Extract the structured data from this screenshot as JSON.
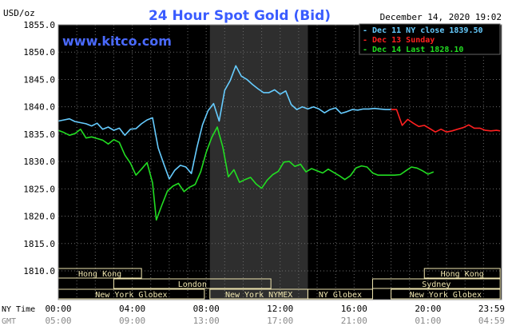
{
  "chart_data": {
    "type": "line",
    "title": "24 Hour Spot Gold (Bid)",
    "watermark": "www.kitco.com",
    "unit_label": "USD/oz",
    "timestamp": "December 14, 2020 19:02",
    "ylim": [
      1810,
      1855
    ],
    "y_ticks": [
      "1855.0",
      "1850.0",
      "1845.0",
      "1840.0",
      "1835.0",
      "1830.0",
      "1825.0",
      "1820.0",
      "1815.0",
      "1810.0"
    ],
    "x_row_labels": {
      "ny": "NY Time",
      "gmt": "GMT"
    },
    "x_ticks_ny": [
      "00:00",
      "04:00",
      "08:00",
      "12:00",
      "16:00",
      "20:00",
      "23:59"
    ],
    "x_ticks_gmt": [
      "05:00",
      "09:00",
      "13:00",
      "17:00",
      "21:00",
      "01:00",
      "04:59"
    ],
    "grid": true,
    "legend_position": "top-right",
    "legend": [
      {
        "label": "Dec 11 NY close 1839.50",
        "color": "#66ccff"
      },
      {
        "label": "Dec 13 Sunday",
        "color": "#ff2020"
      },
      {
        "label": "Dec 14 Last 1828.10",
        "color": "#22dd22"
      }
    ],
    "x_unit": "hours (NY time)",
    "series": [
      {
        "name": "Dec 11 NY close 1839.50",
        "color": "#66ccff",
        "x": [
          0,
          0.3,
          0.6,
          0.9,
          1.2,
          1.5,
          1.8,
          2.1,
          2.4,
          2.7,
          3.0,
          3.3,
          3.6,
          3.9,
          4.2,
          4.5,
          4.8,
          5.1,
          5.4,
          5.7,
          6.0,
          6.3,
          6.6,
          6.9,
          7.2,
          7.5,
          7.8,
          8.1,
          8.4,
          8.7,
          9.0,
          9.3,
          9.6,
          9.9,
          10.2,
          10.5,
          10.8,
          11.1,
          11.4,
          11.7,
          12.0,
          12.3,
          12.6,
          12.9,
          13.2,
          13.5,
          13.8,
          14.1,
          14.4,
          14.7,
          15.0,
          15.3,
          15.6,
          15.9,
          16.2,
          16.5,
          16.8,
          17.1,
          17.4,
          17.7,
          18.0
        ],
        "values": [
          1837.4,
          1837.6,
          1837.8,
          1837.3,
          1837.1,
          1836.9,
          1836.5,
          1837.0,
          1835.9,
          1836.3,
          1835.7,
          1836.1,
          1834.8,
          1835.9,
          1836.0,
          1836.9,
          1837.6,
          1838.0,
          1832.5,
          1829.6,
          1826.8,
          1828.4,
          1829.3,
          1829.0,
          1827.8,
          1832.6,
          1836.7,
          1839.3,
          1840.6,
          1837.4,
          1843.0,
          1844.8,
          1847.5,
          1845.6,
          1845.0,
          1844.1,
          1843.3,
          1842.6,
          1842.6,
          1843.1,
          1842.3,
          1842.9,
          1840.4,
          1839.5,
          1840.0,
          1839.6,
          1840.0,
          1839.6,
          1838.9,
          1839.5,
          1839.8,
          1838.8,
          1839.1,
          1839.5,
          1839.4,
          1839.6,
          1839.6,
          1839.7,
          1839.6,
          1839.5,
          1839.5
        ]
      },
      {
        "name": "Dec 13 Sunday",
        "color": "#ff2020",
        "x": [
          18.0,
          18.3,
          18.6,
          18.9,
          19.2,
          19.5,
          19.8,
          20.1,
          20.4,
          20.7,
          21.0,
          21.3,
          21.6,
          21.9,
          22.2,
          22.5,
          22.8,
          23.1,
          23.4,
          23.7,
          23.9
        ],
        "values": [
          1839.5,
          1839.5,
          1836.6,
          1837.7,
          1837.0,
          1836.4,
          1836.6,
          1836.0,
          1835.4,
          1835.9,
          1835.4,
          1835.6,
          1835.9,
          1836.2,
          1836.7,
          1836.1,
          1836.1,
          1835.7,
          1835.6,
          1835.7,
          1835.6
        ]
      },
      {
        "name": "Dec 14 Last 1828.10",
        "color": "#22dd22",
        "x": [
          0,
          0.3,
          0.6,
          0.9,
          1.2,
          1.5,
          1.8,
          2.1,
          2.4,
          2.7,
          3.0,
          3.3,
          3.6,
          3.9,
          4.2,
          4.5,
          4.8,
          5.1,
          5.3,
          5.6,
          5.9,
          6.2,
          6.5,
          6.8,
          7.1,
          7.4,
          7.7,
          8.0,
          8.3,
          8.6,
          8.9,
          9.2,
          9.5,
          9.8,
          10.1,
          10.4,
          10.7,
          11.0,
          11.3,
          11.6,
          11.9,
          12.2,
          12.5,
          12.8,
          13.1,
          13.4,
          13.7,
          14.0,
          14.3,
          14.6,
          14.9,
          15.2,
          15.5,
          15.8,
          16.1,
          16.4,
          16.7,
          17.0,
          17.3,
          17.6,
          17.9,
          18.2,
          18.5,
          18.8,
          19.1,
          19.4,
          19.7,
          20.0,
          20.3
        ],
        "values": [
          1835.7,
          1835.3,
          1834.8,
          1835.1,
          1835.9,
          1834.3,
          1834.5,
          1834.2,
          1833.9,
          1833.2,
          1834.0,
          1833.5,
          1831.2,
          1829.7,
          1827.5,
          1828.6,
          1829.8,
          1826.1,
          1819.3,
          1822.0,
          1824.6,
          1825.5,
          1826.0,
          1824.5,
          1825.3,
          1825.8,
          1828.1,
          1831.7,
          1834.4,
          1836.3,
          1832.6,
          1827.2,
          1828.5,
          1826.2,
          1826.7,
          1827.1,
          1825.9,
          1825.1,
          1826.6,
          1827.6,
          1828.2,
          1829.9,
          1830.0,
          1829.1,
          1829.5,
          1828.1,
          1828.7,
          1828.3,
          1827.9,
          1828.6,
          1828.0,
          1827.4,
          1826.7,
          1827.4,
          1828.8,
          1829.2,
          1829.0,
          1827.9,
          1827.5,
          1827.5,
          1827.5,
          1827.5,
          1827.6,
          1828.3,
          1829.0,
          1828.8,
          1828.3,
          1827.7,
          1828.1
        ]
      }
    ],
    "sessions": {
      "row1": [
        {
          "label": "Hong Kong",
          "start": 0,
          "end": 4.5
        },
        {
          "label": "Hong Kong",
          "start": 19.8,
          "end": 23.9
        }
      ],
      "row2": [
        {
          "label": "London",
          "start": 3.0,
          "end": 11.5
        },
        {
          "label": "Sydney",
          "start": 17.0,
          "end": 23.9
        }
      ],
      "row3": [
        {
          "label": "New York Globex",
          "start": 0,
          "end": 7.9
        },
        {
          "label": "New York NYMEX",
          "start": 8.2,
          "end": 13.5
        },
        {
          "label": "NY Globex",
          "start": 13.5,
          "end": 17.0
        },
        {
          "label": "New York Globex",
          "start": 18.0,
          "end": 23.9
        }
      ]
    },
    "shaded_range": [
      8.2,
      13.5
    ]
  }
}
